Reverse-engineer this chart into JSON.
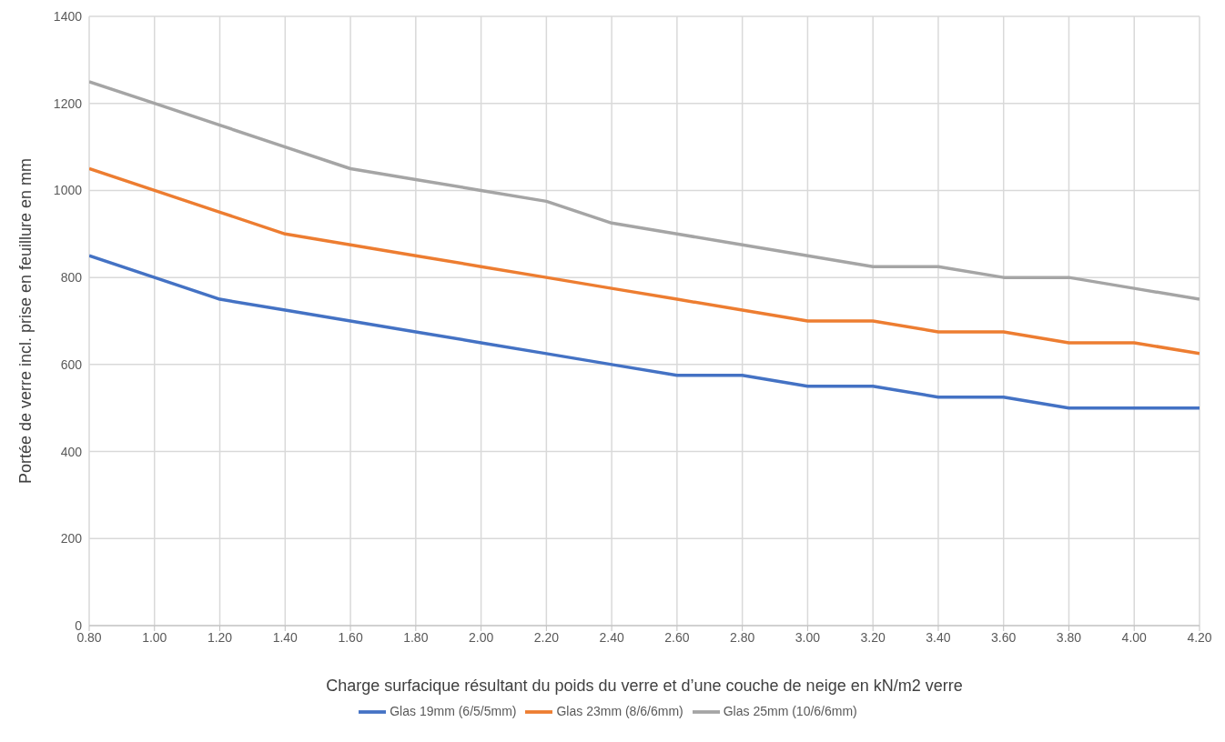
{
  "chart_data": {
    "type": "line",
    "xlabel": "Charge surfacique résultant du poids du verre et d’une couche de neige en kN/m2 verre",
    "ylabel": "Portée de verre incl. prise en feuillure en mm",
    "x": [
      0.8,
      1.0,
      1.2,
      1.4,
      1.6,
      1.8,
      2.0,
      2.2,
      2.4,
      2.6,
      2.8,
      3.0,
      3.2,
      3.4,
      3.6,
      3.8,
      4.0,
      4.2
    ],
    "series": [
      {
        "name": "Glas 19mm (6/5/5mm)",
        "color": "#4472c4",
        "values": [
          850,
          800,
          750,
          725,
          700,
          675,
          650,
          625,
          600,
          575,
          575,
          550,
          550,
          525,
          525,
          500,
          500,
          500
        ]
      },
      {
        "name": "Glas 23mm (8/6/6mm)",
        "color": "#ed7d31",
        "values": [
          1050,
          1000,
          950,
          900,
          875,
          850,
          825,
          800,
          775,
          750,
          725,
          700,
          700,
          675,
          675,
          650,
          650,
          625
        ]
      },
      {
        "name": "Glas 25mm (10/6/6mm)",
        "color": "#a5a5a5",
        "values": [
          1250,
          1200,
          1150,
          1100,
          1050,
          1025,
          1000,
          975,
          925,
          900,
          875,
          850,
          825,
          825,
          800,
          800,
          775,
          750
        ]
      }
    ],
    "xlim": [
      0.8,
      4.2
    ],
    "xticks": [
      {
        "value": 0.8,
        "label": "0.80"
      },
      {
        "value": 1.0,
        "label": "1.00"
      },
      {
        "value": 1.2,
        "label": "1.20"
      },
      {
        "value": 1.4,
        "label": "1.40"
      },
      {
        "value": 1.6,
        "label": "1.60"
      },
      {
        "value": 1.8,
        "label": "1.80"
      },
      {
        "value": 2.0,
        "label": "2.00"
      },
      {
        "value": 2.2,
        "label": "2.20"
      },
      {
        "value": 2.4,
        "label": "2.40"
      },
      {
        "value": 2.6,
        "label": "2.60"
      },
      {
        "value": 2.8,
        "label": "2.80"
      },
      {
        "value": 3.0,
        "label": "3.00"
      },
      {
        "value": 3.2,
        "label": "3.20"
      },
      {
        "value": 3.4,
        "label": "3.40"
      },
      {
        "value": 3.6,
        "label": "3.60"
      },
      {
        "value": 3.8,
        "label": "3.80"
      },
      {
        "value": 4.0,
        "label": "4.00"
      },
      {
        "value": 4.2,
        "label": "4.20"
      }
    ],
    "ylim": [
      0,
      1400
    ],
    "yticks": [
      0,
      200,
      400,
      600,
      800,
      1000,
      1200,
      1400
    ],
    "grid": true,
    "legend": "bottom",
    "marker": "none",
    "line_style": "solid"
  }
}
